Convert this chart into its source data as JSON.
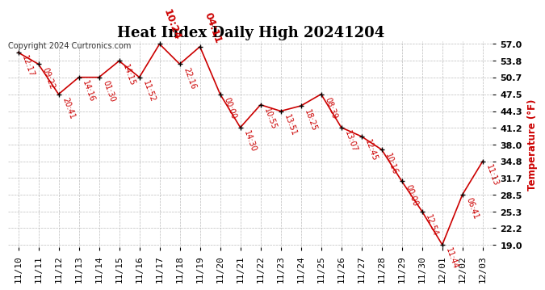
{
  "title": "Heat Index Daily High 20241204",
  "copyright": "Copyright 2024 Curtronics.com",
  "ylabel": "Temperature (°F)",
  "ylabel_color": "#cc0000",
  "background_color": "#ffffff",
  "line_color": "#cc0000",
  "marker_color": "#000000",
  "ylim": [
    19.0,
    57.0
  ],
  "ytick_step": 3.2,
  "yticks": [
    19.0,
    22.2,
    25.3,
    28.5,
    31.7,
    34.8,
    38.0,
    41.2,
    44.3,
    47.5,
    50.7,
    53.8,
    57.0
  ],
  "dates": [
    "11/10",
    "11/11",
    "11/12",
    "11/13",
    "11/14",
    "11/15",
    "11/16",
    "11/17",
    "11/18",
    "11/19",
    "11/20",
    "11/21",
    "11/22",
    "11/23",
    "11/24",
    "11/25",
    "11/26",
    "11/27",
    "11/28",
    "11/29",
    "11/30",
    "12/01",
    "12/02",
    "12/03"
  ],
  "values": [
    55.4,
    53.2,
    47.5,
    50.7,
    50.7,
    53.8,
    50.7,
    57.0,
    53.2,
    56.5,
    47.5,
    41.2,
    45.5,
    44.3,
    45.3,
    47.5,
    41.2,
    39.5,
    37.0,
    31.0,
    25.3,
    19.0,
    28.5,
    34.8
  ],
  "labels": [
    "12:17",
    "09:22",
    "20:41",
    "14:16",
    "01:30",
    "14:15",
    "11:52",
    "10:24",
    "22:16",
    "04:11",
    "00:00",
    "14:30",
    "10:55",
    "13:51",
    "18:25",
    "08:39",
    "13:07",
    "12:45",
    "10:16",
    "00:00",
    "12:54",
    "11:44",
    "06:41",
    "11:13"
  ],
  "label_color": "#cc0000",
  "label_above": [
    7,
    9
  ],
  "special_bold_indices": [
    7,
    9
  ],
  "grid_color": "#bbbbbb",
  "title_fontsize": 13,
  "label_fontsize": 7,
  "label_fontsize_bold": 9,
  "tick_fontsize": 8,
  "copyright_fontsize": 7,
  "copyright_color": "#333333",
  "marker_size": 5,
  "line_width": 1.2
}
